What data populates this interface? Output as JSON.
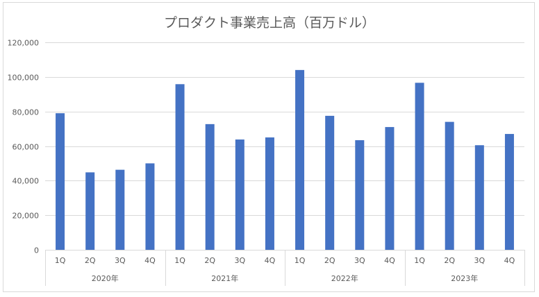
{
  "chart_data": {
    "type": "bar",
    "title": "プロダクト事業売上高（百万ドル）",
    "xlabel": "",
    "ylabel": "",
    "ylim": [
      0,
      120000
    ],
    "yticks": [
      0,
      20000,
      40000,
      60000,
      80000,
      100000,
      120000
    ],
    "ytick_labels": [
      "0",
      "20,000",
      "40,000",
      "60,000",
      "80,000",
      "100,000",
      "120,000"
    ],
    "categories": [
      "1Q",
      "2Q",
      "3Q",
      "4Q",
      "1Q",
      "2Q",
      "3Q",
      "4Q",
      "1Q",
      "2Q",
      "3Q",
      "4Q",
      "1Q",
      "2Q",
      "3Q",
      "4Q"
    ],
    "groups": [
      {
        "label": "2020年",
        "count": 4
      },
      {
        "label": "2021年",
        "count": 4
      },
      {
        "label": "2022年",
        "count": 4
      },
      {
        "label": "2023年",
        "count": 4
      }
    ],
    "values": [
      79000,
      44800,
      46300,
      50000,
      95800,
      72700,
      63800,
      65000,
      104000,
      77500,
      63400,
      71000,
      96600,
      74000,
      60500,
      67000
    ],
    "bar_color": "#4472c4",
    "grid": true,
    "legend": "none"
  }
}
